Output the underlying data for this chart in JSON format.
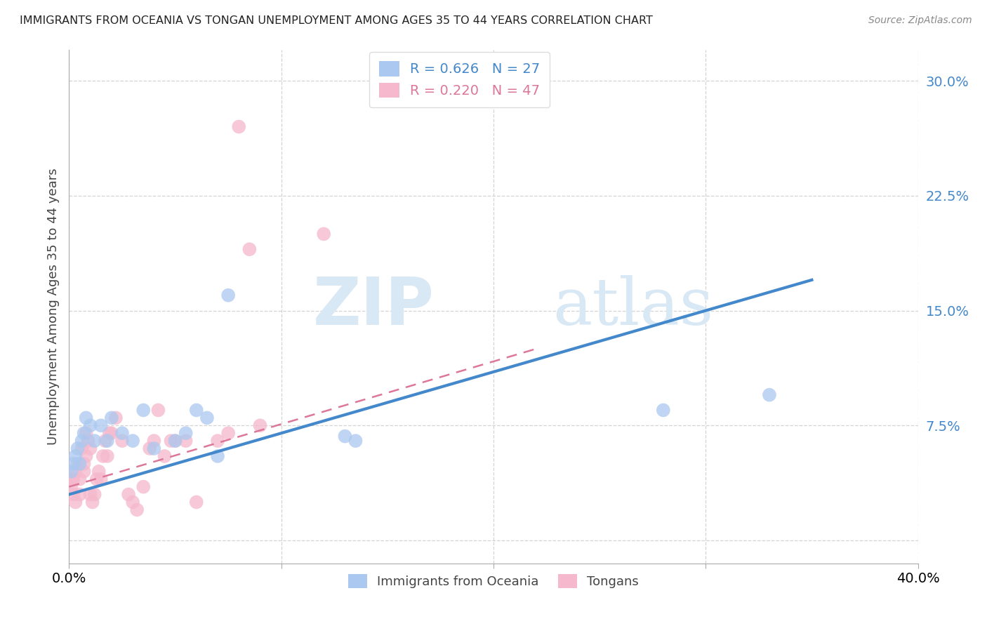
{
  "title": "IMMIGRANTS FROM OCEANIA VS TONGAN UNEMPLOYMENT AMONG AGES 35 TO 44 YEARS CORRELATION CHART",
  "source": "Source: ZipAtlas.com",
  "ylabel": "Unemployment Among Ages 35 to 44 years",
  "xlim": [
    0.0,
    0.4
  ],
  "ylim": [
    -0.015,
    0.32
  ],
  "yticks": [
    0.0,
    0.075,
    0.15,
    0.225,
    0.3
  ],
  "ytick_labels": [
    "",
    "7.5%",
    "15.0%",
    "22.5%",
    "30.0%"
  ],
  "grid_color": "#d0d0d0",
  "background_color": "#ffffff",
  "watermark_zip": "ZIP",
  "watermark_atlas": "atlas",
  "legend_R1": "R = 0.626",
  "legend_N1": "N = 27",
  "legend_R2": "R = 0.220",
  "legend_N2": "N = 47",
  "series1_label": "Immigrants from Oceania",
  "series2_label": "Tongans",
  "series1_color": "#aac8f0",
  "series2_color": "#f5b8cc",
  "series1_line_color": "#4488cc",
  "series2_line_color": "#dd7799",
  "blue_scatter_x": [
    0.001,
    0.002,
    0.003,
    0.004,
    0.005,
    0.006,
    0.007,
    0.008,
    0.01,
    0.012,
    0.015,
    0.018,
    0.02,
    0.025,
    0.03,
    0.035,
    0.04,
    0.05,
    0.055,
    0.06,
    0.065,
    0.07,
    0.075,
    0.13,
    0.135,
    0.28,
    0.33
  ],
  "blue_scatter_y": [
    0.045,
    0.05,
    0.055,
    0.06,
    0.05,
    0.065,
    0.07,
    0.08,
    0.075,
    0.065,
    0.075,
    0.065,
    0.08,
    0.07,
    0.065,
    0.085,
    0.06,
    0.065,
    0.07,
    0.085,
    0.08,
    0.055,
    0.16,
    0.068,
    0.065,
    0.085,
    0.095
  ],
  "pink_scatter_x": [
    0.001,
    0.001,
    0.002,
    0.002,
    0.003,
    0.003,
    0.004,
    0.005,
    0.005,
    0.006,
    0.007,
    0.007,
    0.008,
    0.008,
    0.009,
    0.01,
    0.01,
    0.011,
    0.012,
    0.013,
    0.014,
    0.015,
    0.016,
    0.017,
    0.018,
    0.019,
    0.02,
    0.022,
    0.025,
    0.028,
    0.03,
    0.032,
    0.035,
    0.038,
    0.04,
    0.042,
    0.045,
    0.048,
    0.05,
    0.055,
    0.06,
    0.07,
    0.075,
    0.08,
    0.085,
    0.09,
    0.12
  ],
  "pink_scatter_y": [
    0.04,
    0.035,
    0.04,
    0.03,
    0.045,
    0.025,
    0.05,
    0.04,
    0.03,
    0.06,
    0.05,
    0.045,
    0.07,
    0.055,
    0.065,
    0.06,
    0.03,
    0.025,
    0.03,
    0.04,
    0.045,
    0.04,
    0.055,
    0.065,
    0.055,
    0.07,
    0.07,
    0.08,
    0.065,
    0.03,
    0.025,
    0.02,
    0.035,
    0.06,
    0.065,
    0.085,
    0.055,
    0.065,
    0.065,
    0.065,
    0.025,
    0.065,
    0.07,
    0.27,
    0.19,
    0.075,
    0.2
  ],
  "blue_trendline_x": [
    0.0,
    0.35
  ],
  "blue_trendline_y": [
    0.03,
    0.17
  ],
  "pink_trendline_x": [
    0.0,
    0.22
  ],
  "pink_trendline_y": [
    0.035,
    0.125
  ]
}
